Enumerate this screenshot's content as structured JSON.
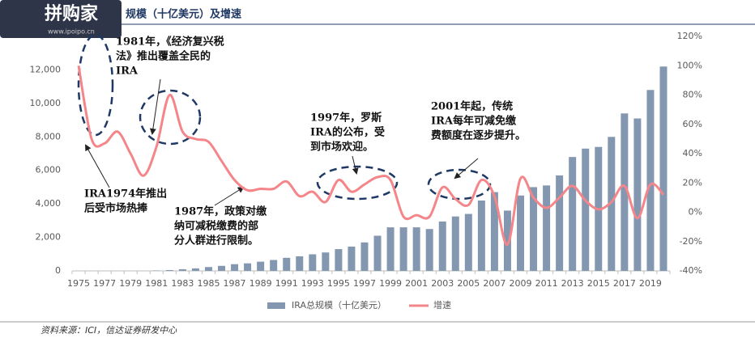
{
  "watermark": {
    "name": "拼购家",
    "url": "www.ipoipo.cn"
  },
  "chart_data": {
    "type": "bar_line",
    "title": "规模（十亿美元）及增速",
    "source": "资料来源：ICI，信达证券研发中心",
    "categories": [
      "1975",
      null,
      "1977",
      null,
      "1979",
      null,
      "1981",
      null,
      "1983",
      null,
      "1985",
      null,
      "1987",
      null,
      "1989",
      null,
      "1991",
      null,
      "1993",
      null,
      "1995",
      null,
      "1997",
      null,
      "1999",
      null,
      "2001",
      null,
      "2003",
      null,
      "2005",
      null,
      "2007",
      null,
      "2009",
      null,
      "2011",
      null,
      "2013",
      null,
      "2015",
      null,
      "2017",
      null,
      "2019",
      null
    ],
    "series": [
      {
        "name": "IRA总规模（十亿美元）",
        "color": "#8497b0",
        "axis": "y",
        "values": [
          0,
          0,
          0,
          0,
          0,
          0,
          25,
          50,
          100,
          150,
          230,
          300,
          400,
          450,
          550,
          650,
          780,
          870,
          990,
          1100,
          1300,
          1450,
          1700,
          2100,
          2600,
          2600,
          2600,
          2500,
          2950,
          3250,
          3400,
          4200,
          4700,
          3600,
          4500,
          5000,
          5100,
          5700,
          6800,
          7300,
          7400,
          8000,
          9400,
          9100,
          10800,
          12200
        ]
      },
      {
        "name": "增速",
        "color": "#f4868a",
        "axis": "y2",
        "values": [
          100,
          50,
          47,
          55,
          40,
          25,
          45,
          80,
          55,
          50,
          48,
          35,
          22,
          15,
          16,
          16,
          21,
          11,
          14,
          7,
          22,
          14,
          19,
          24,
          22,
          -3,
          -2,
          -3,
          17,
          9,
          5,
          22,
          11,
          -22,
          23,
          10,
          3,
          10,
          18,
          8,
          2,
          7,
          18,
          -4,
          19,
          12
        ]
      }
    ],
    "ylim": [
      0,
      14000
    ],
    "yticks": [
      0,
      {
        "value": 2000,
        "label": "2,000"
      },
      {
        "value": 4000,
        "label": "4,000"
      },
      {
        "value": 6000,
        "label": "6,000"
      },
      {
        "value": 8000,
        "label": "8,000"
      },
      {
        "value": 10000,
        "label": "10,000"
      },
      {
        "value": 12000,
        "label": "12,000"
      }
    ],
    "y2lim": [
      -40,
      120
    ],
    "y2ticks": [
      {
        "value": -40,
        "label": "-40%"
      },
      {
        "value": -20,
        "label": "-20%"
      },
      {
        "value": 0,
        "label": "0%"
      },
      {
        "value": 20,
        "label": "20%"
      },
      {
        "value": 40,
        "label": "40%"
      },
      {
        "value": 60,
        "label": "60%"
      },
      {
        "value": 80,
        "label": "80%"
      },
      {
        "value": 100,
        "label": "100%"
      },
      {
        "value": 120,
        "label": "120%"
      }
    ],
    "legend": "bottom",
    "annotations": [
      [
        "1981年，《经济复兴税",
        "法》推出覆盖全民的",
        "IRA"
      ],
      [
        "IRA1974年推出",
        "后受市场热捧"
      ],
      [
        "1987年，政策对缴",
        "纳可减税缴费的部",
        "分人群进行限制。"
      ],
      [
        "1997年，罗斯",
        "IRA的公布，受",
        "到市场欢迎。"
      ],
      [
        "2001年起，传统",
        "IRA每年可减免缴",
        "费额度在逐步提升。"
      ]
    ]
  }
}
